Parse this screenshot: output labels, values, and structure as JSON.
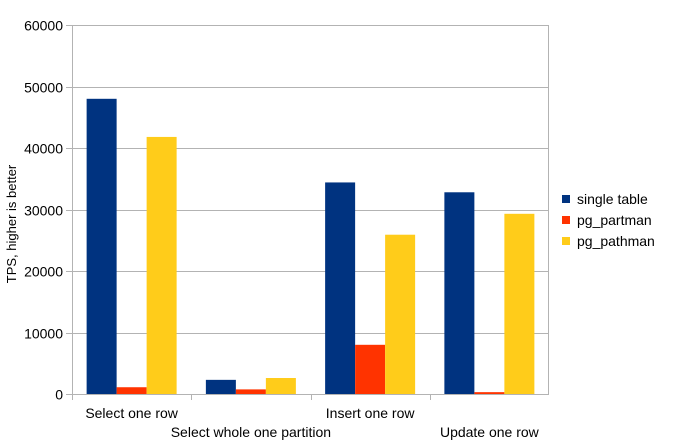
{
  "chart_data": {
    "type": "bar",
    "title": "",
    "xlabel": "",
    "ylabel": "TPS, higher is better",
    "ylim": [
      0,
      60000
    ],
    "yticks": [
      0,
      10000,
      20000,
      30000,
      40000,
      50000,
      60000
    ],
    "grid": true,
    "legend_position": "right",
    "categories": [
      "Select one row",
      "Select whole one partition",
      "Insert one row",
      "Update one row"
    ],
    "series": [
      {
        "name": "single table",
        "color": "#003380",
        "values": [
          48000,
          2300,
          34400,
          32800
        ]
      },
      {
        "name": "pg_partman",
        "color": "#ff3300",
        "values": [
          1100,
          750,
          8000,
          300
        ]
      },
      {
        "name": "pg_pathman",
        "color": "#ffcc1a",
        "values": [
          41800,
          2600,
          25900,
          29300
        ]
      }
    ]
  }
}
